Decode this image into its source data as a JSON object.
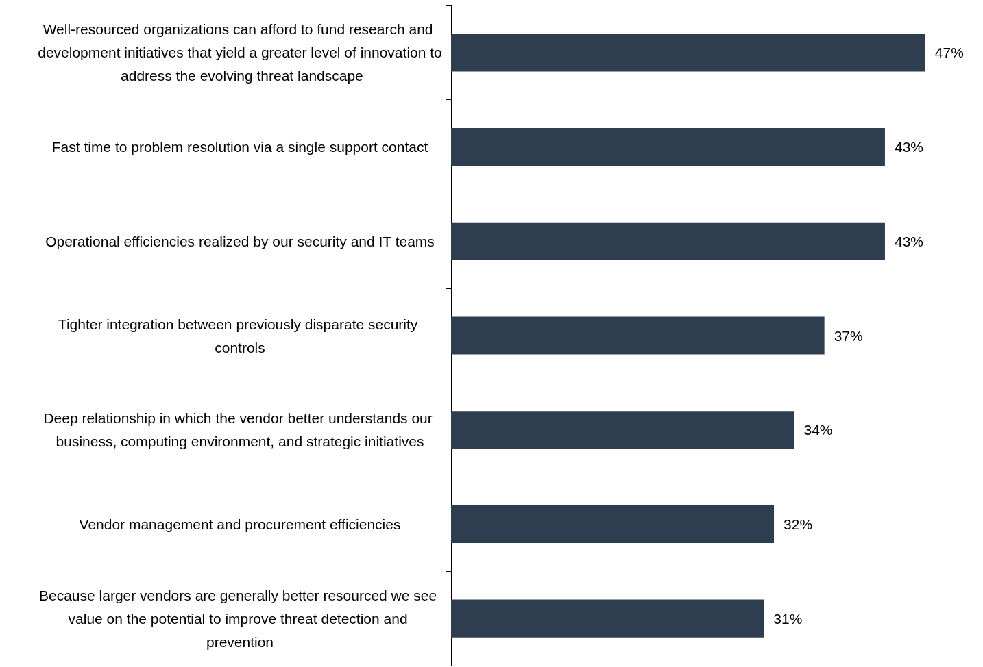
{
  "chart_data": {
    "type": "bar",
    "orientation": "horizontal",
    "categories": [
      "Well-resourced organizations can afford to fund research and development initiatives that yield a greater level of innovation to address the evolving threat landscape",
      "Fast time to problem resolution via a single support contact",
      "Operational efficiencies realized by our security and IT teams",
      "Tighter integration between previously disparate security controls",
      "Deep relationship in which the vendor better understands our business, computing environment, and strategic initiatives",
      "Vendor management and procurement efficiencies",
      "Because larger vendors are generally better resourced we see value on the potential to improve threat detection and prevention"
    ],
    "values": [
      47,
      43,
      43,
      37,
      34,
      32,
      31
    ],
    "value_labels": [
      "47%",
      "43%",
      "43%",
      "37%",
      "34%",
      "32%",
      "31%"
    ],
    "color": "#2e3e50"
  }
}
